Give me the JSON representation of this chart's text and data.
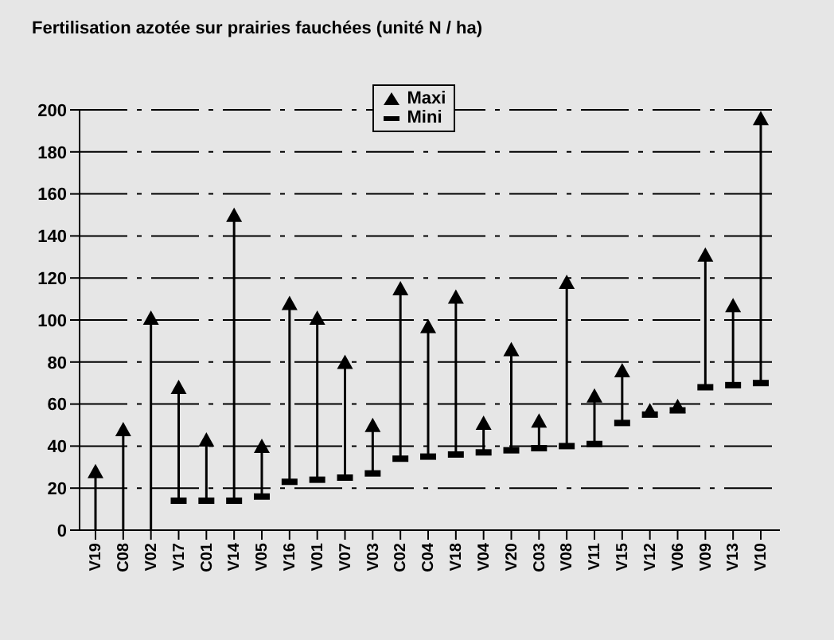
{
  "chart_data": {
    "type": "scatter",
    "title": "Fertilisation azotée sur prairies fauchées (unité N / ha)",
    "categories": [
      "V19",
      "C08",
      "V02",
      "V17",
      "C01",
      "V14",
      "V05",
      "V16",
      "V01",
      "V07",
      "V03",
      "C02",
      "C04",
      "V18",
      "V04",
      "V20",
      "C03",
      "V08",
      "V11",
      "V15",
      "V12",
      "V06",
      "V09",
      "V13",
      "V10"
    ],
    "series": [
      {
        "name": "Maxi",
        "color": "#000000",
        "marker": "triangle",
        "values": [
          27,
          47,
          100,
          67,
          42,
          149,
          39,
          107,
          100,
          79,
          49,
          114,
          96,
          110,
          50,
          85,
          51,
          117,
          63,
          75,
          56,
          58,
          130,
          106,
          195
        ],
        "errors": [
          [
            0,
            27
          ],
          [
            0,
            47
          ],
          [
            0,
            100
          ],
          null,
          null,
          null,
          null,
          null,
          null,
          null,
          null,
          null,
          null,
          null,
          null,
          null,
          null,
          null,
          null,
          null,
          null,
          null,
          null,
          null,
          null
        ]
      },
      {
        "name": "Mini",
        "color": "#000000",
        "values": [
          null,
          null,
          null,
          14,
          14,
          14,
          16,
          23,
          24,
          25,
          27,
          34,
          35,
          36,
          37,
          38,
          39,
          40,
          41,
          51,
          55,
          57,
          68,
          69,
          70
        ],
        "errors": [
          null,
          null,
          null,
          [
            14,
            67
          ],
          [
            14,
            42
          ],
          [
            14,
            149
          ],
          [
            16,
            39
          ],
          [
            23,
            107
          ],
          [
            24,
            100
          ],
          [
            25,
            79
          ],
          [
            27,
            49
          ],
          [
            34,
            114
          ],
          [
            35,
            96
          ],
          [
            36,
            110
          ],
          [
            37,
            50
          ],
          [
            38,
            85
          ],
          [
            39,
            51
          ],
          [
            40,
            117
          ],
          [
            41,
            63
          ],
          [
            51,
            75
          ],
          [
            55,
            56
          ],
          [
            57,
            58
          ],
          [
            68,
            130
          ],
          [
            69,
            106
          ],
          [
            70,
            195
          ]
        ]
      }
    ],
    "ylim": [
      0,
      200
    ],
    "yticks": [
      0,
      20,
      40,
      60,
      80,
      100,
      120,
      140,
      160,
      180,
      200
    ],
    "grid": "y",
    "legend": "top"
  }
}
